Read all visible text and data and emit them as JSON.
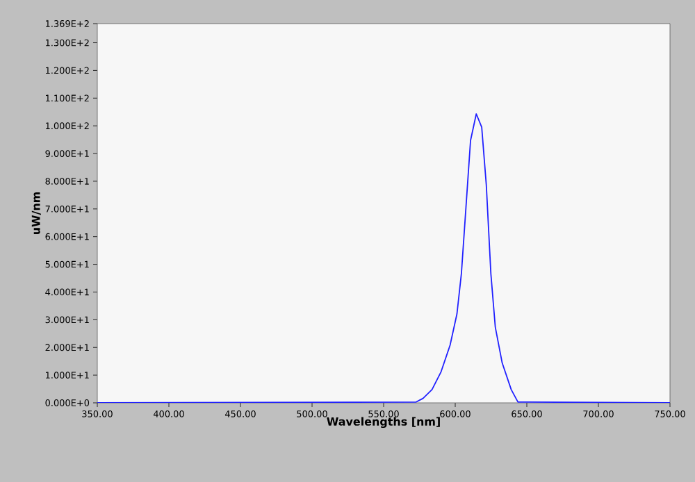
{
  "chart_data": {
    "type": "line",
    "xlabel": "Wavelengths [nm]",
    "ylabel": "uW/nm",
    "xlim": [
      350,
      750
    ],
    "ylim": [
      0,
      136.9
    ],
    "xticks": [
      {
        "value": 350,
        "label": "350.00"
      },
      {
        "value": 400,
        "label": "400.00"
      },
      {
        "value": 450,
        "label": "450.00"
      },
      {
        "value": 500,
        "label": "500.00"
      },
      {
        "value": 550,
        "label": "550.00"
      },
      {
        "value": 600,
        "label": "600.00"
      },
      {
        "value": 650,
        "label": "650.00"
      },
      {
        "value": 700,
        "label": "700.00"
      },
      {
        "value": 750,
        "label": "750.00"
      }
    ],
    "yticks": [
      {
        "value": 0,
        "label": "0.000E+0"
      },
      {
        "value": 10,
        "label": "1.000E+1"
      },
      {
        "value": 20,
        "label": "2.000E+1"
      },
      {
        "value": 30,
        "label": "3.000E+1"
      },
      {
        "value": 40,
        "label": "4.000E+1"
      },
      {
        "value": 50,
        "label": "5.000E+1"
      },
      {
        "value": 60,
        "label": "6.000E+1"
      },
      {
        "value": 70,
        "label": "7.000E+1"
      },
      {
        "value": 80,
        "label": "8.000E+1"
      },
      {
        "value": 90,
        "label": "9.000E+1"
      },
      {
        "value": 100,
        "label": "1.000E+2"
      },
      {
        "value": 110,
        "label": "1.100E+2"
      },
      {
        "value": 120,
        "label": "1.200E+2"
      },
      {
        "value": 130,
        "label": "1.300E+2"
      },
      {
        "value": 136.9,
        "label": "1.369E+2"
      }
    ],
    "grid": false,
    "marker": "none",
    "line_style": "solid",
    "series": [
      {
        "color": "#2020ff",
        "x": [
          350,
          572.7,
          577.5,
          583.8,
          590.1,
          596.4,
          601.2,
          604.3,
          607.5,
          610.7,
          614.7,
          618.5,
          621.7,
          624.9,
          628.0,
          632.8,
          639.1,
          643.8,
          750
        ],
        "values": [
          0,
          0.3,
          1.6,
          4.8,
          11.2,
          20.8,
          32.1,
          46.6,
          70.6,
          94.7,
          104.3,
          99.5,
          78.7,
          46.6,
          27.3,
          14.4,
          4.8,
          0.3,
          0
        ]
      }
    ]
  }
}
